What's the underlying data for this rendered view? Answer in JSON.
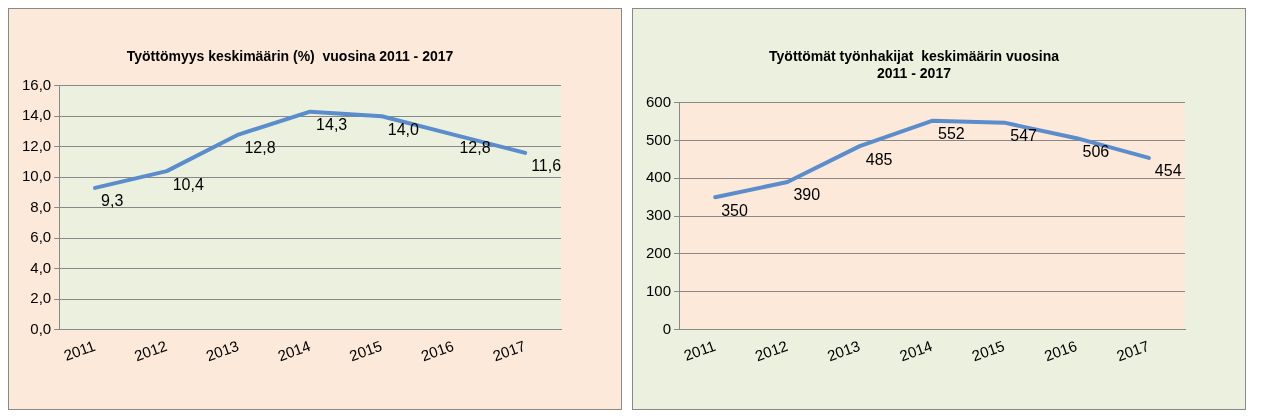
{
  "chart_data": [
    {
      "type": "line",
      "title": "Työttömyys keskimäärin (%)  vuosina 2011 - 2017",
      "categories": [
        "2011",
        "2012",
        "2013",
        "2014",
        "2015",
        "2016",
        "2017"
      ],
      "series": [
        {
          "color": "#5b8ccc",
          "values": [
            9.3,
            10.4,
            12.8,
            14.3,
            14.0,
            12.8,
            11.6
          ],
          "value_labels": [
            "9,3",
            "10,4",
            "12,8",
            "14,3",
            "14,0",
            "12,8",
            "11,6"
          ]
        }
      ],
      "ylim": [
        0,
        16
      ],
      "yticks": [
        {
          "value": 0,
          "label": "0,0"
        },
        {
          "value": 2,
          "label": "2,0"
        },
        {
          "value": 4,
          "label": "4,0"
        },
        {
          "value": 6,
          "label": "6,0"
        },
        {
          "value": 8,
          "label": "8,0"
        },
        {
          "value": 10,
          "label": "10,0"
        },
        {
          "value": 12,
          "label": "12,0"
        },
        {
          "value": 14,
          "label": "14,0"
        },
        {
          "value": 16,
          "label": "16,0"
        }
      ],
      "grid": "y",
      "legend": false,
      "marker": "none",
      "line_style": "solid"
    },
    {
      "type": "line",
      "title": "Työttömät työnhakijat  keskimäärin vuosina\n2011 - 2017",
      "categories": [
        "2011",
        "2012",
        "2013",
        "2014",
        "2015",
        "2016",
        "2017"
      ],
      "series": [
        {
          "color": "#5b8ccc",
          "values": [
            350,
            390,
            485,
            552,
            547,
            506,
            454
          ]
        }
      ],
      "ylim": [
        0,
        600
      ],
      "yticks": [
        0,
        100,
        200,
        300,
        400,
        500,
        600
      ],
      "data_labels": true,
      "grid": "y",
      "legend": false,
      "marker": "none",
      "line_style": "solid"
    }
  ]
}
